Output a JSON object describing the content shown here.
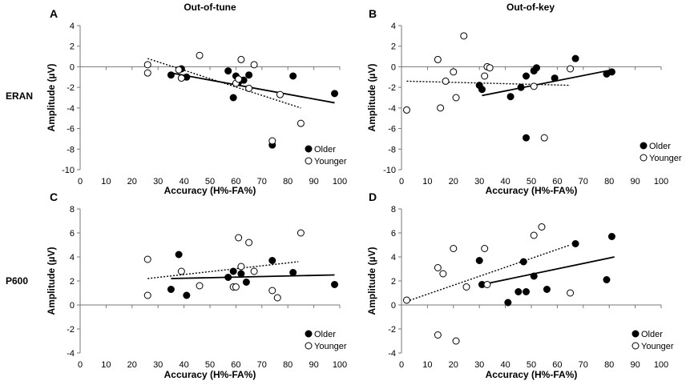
{
  "figure": {
    "row_labels": [
      "ERAN",
      "P600"
    ],
    "column_titles": [
      "Out-of-tune",
      "Out-of-key"
    ]
  },
  "chart_data": [
    {
      "panel": "A",
      "type": "scatter",
      "title": "Out-of-tune",
      "xlabel": "Accuracy (H%-FA%)",
      "ylabel": "Amplitude (µV)",
      "xlim": [
        0,
        100
      ],
      "ylim": [
        -10,
        4
      ],
      "x_ticks": [
        0,
        10,
        20,
        30,
        40,
        50,
        60,
        70,
        80,
        90,
        100
      ],
      "y_ticks": [
        4,
        2,
        0,
        -2,
        -4,
        -6,
        -8,
        -10
      ],
      "legend": [
        "Older",
        "Younger"
      ],
      "series": [
        {
          "name": "Older",
          "marker": "filled-circle",
          "x": [
            35,
            39,
            41,
            57,
            59,
            60,
            61,
            63,
            65,
            74,
            82,
            98
          ],
          "y": [
            -0.8,
            -0.2,
            -1.0,
            -0.4,
            -3.0,
            -0.9,
            -1.5,
            -1.3,
            -0.8,
            -7.6,
            -0.9,
            -2.6
          ],
          "trend": {
            "style": "solid",
            "x": [
              35,
              98
            ],
            "y": [
              -0.6,
              -3.5
            ]
          }
        },
        {
          "name": "Younger",
          "marker": "open-circle",
          "x": [
            26,
            26,
            38,
            39,
            46,
            60,
            61,
            62,
            65,
            67,
            74,
            77,
            85
          ],
          "y": [
            0.2,
            -0.6,
            -0.3,
            -1.1,
            1.1,
            -1.6,
            -1.2,
            0.7,
            -2.1,
            0.2,
            -7.2,
            -2.7,
            -5.5
          ],
          "trend": {
            "style": "dotted",
            "x": [
              26,
              85
            ],
            "y": [
              0.8,
              -4.0
            ]
          }
        }
      ]
    },
    {
      "panel": "B",
      "type": "scatter",
      "title": "Out-of-key",
      "xlabel": "Accuracy (H%-FA%)",
      "ylabel": "Amplitude (µV)",
      "xlim": [
        0,
        100
      ],
      "ylim": [
        -10,
        4
      ],
      "x_ticks": [
        0,
        10,
        20,
        30,
        40,
        50,
        60,
        70,
        80,
        90,
        100
      ],
      "y_ticks": [
        4,
        2,
        0,
        -2,
        -4,
        -6,
        -8,
        -10
      ],
      "legend": [
        "Older",
        "Younger"
      ],
      "series": [
        {
          "name": "Older",
          "marker": "filled-circle",
          "x": [
            30,
            31,
            42,
            46,
            48,
            48,
            51,
            52,
            59,
            67,
            79,
            81
          ],
          "y": [
            -1.8,
            -2.2,
            -2.9,
            -2.0,
            -6.9,
            -0.9,
            -0.4,
            -0.1,
            -1.1,
            0.8,
            -0.7,
            -0.5
          ],
          "trend": {
            "style": "solid",
            "x": [
              31,
              81
            ],
            "y": [
              -2.8,
              -0.3
            ]
          }
        },
        {
          "name": "Younger",
          "marker": "open-circle",
          "x": [
            2,
            14,
            15,
            17,
            20,
            21,
            24,
            32,
            33,
            34,
            51,
            55,
            65
          ],
          "y": [
            -4.2,
            0.7,
            -4.0,
            -1.4,
            -0.5,
            -3.0,
            3.0,
            -0.9,
            0.0,
            -0.1,
            -1.9,
            -6.9,
            -0.2
          ],
          "trend": {
            "style": "dotted",
            "x": [
              2,
              65
            ],
            "y": [
              -1.4,
              -1.8
            ]
          }
        }
      ]
    },
    {
      "panel": "C",
      "type": "scatter",
      "title": "",
      "xlabel": "Accuracy (H%-FA%)",
      "ylabel": "Amplitude (µV)",
      "xlim": [
        0,
        100
      ],
      "ylim": [
        -4,
        8
      ],
      "x_ticks": [
        0,
        10,
        20,
        30,
        40,
        50,
        60,
        70,
        80,
        90,
        100
      ],
      "y_ticks": [
        8,
        6,
        4,
        2,
        0,
        -2,
        -4
      ],
      "legend": [
        "Older",
        "Younger"
      ],
      "series": [
        {
          "name": "Older",
          "marker": "filled-circle",
          "x": [
            35,
            38,
            41,
            57,
            59,
            62,
            64,
            74,
            82,
            98
          ],
          "y": [
            1.3,
            4.2,
            0.8,
            2.3,
            2.8,
            2.6,
            1.9,
            3.7,
            2.7,
            1.7
          ],
          "trend": {
            "style": "solid",
            "x": [
              35,
              98
            ],
            "y": [
              2.2,
              2.5
            ]
          }
        },
        {
          "name": "Younger",
          "marker": "open-circle",
          "x": [
            26,
            26,
            39,
            46,
            59,
            60,
            61,
            62,
            65,
            67,
            74,
            76,
            85
          ],
          "y": [
            0.8,
            3.8,
            2.8,
            1.6,
            1.5,
            1.5,
            5.6,
            3.2,
            5.2,
            2.8,
            1.2,
            0.6,
            6.0
          ],
          "trend": {
            "style": "dotted",
            "x": [
              26,
              84
            ],
            "y": [
              2.2,
              3.6
            ]
          }
        }
      ]
    },
    {
      "panel": "D",
      "type": "scatter",
      "title": "",
      "xlabel": "Accuracy (H%-FA%)",
      "ylabel": "Amplitude (µV)",
      "xlim": [
        0,
        100
      ],
      "ylim": [
        -4,
        8
      ],
      "x_ticks": [
        0,
        10,
        20,
        30,
        40,
        50,
        60,
        70,
        80,
        90,
        100
      ],
      "y_ticks": [
        8,
        6,
        4,
        2,
        0,
        -2,
        -4
      ],
      "legend": [
        "Older",
        "Younger"
      ],
      "series": [
        {
          "name": "Older",
          "marker": "filled-circle",
          "x": [
            30,
            31,
            41,
            45,
            47,
            48,
            51,
            56,
            67,
            79,
            81
          ],
          "y": [
            3.7,
            1.7,
            0.2,
            1.1,
            3.6,
            1.1,
            2.4,
            1.3,
            5.1,
            2.1,
            5.7
          ],
          "trend": {
            "style": "solid",
            "x": [
              31,
              82
            ],
            "y": [
              1.7,
              4.0
            ]
          }
        },
        {
          "name": "Younger",
          "marker": "open-circle",
          "x": [
            2,
            14,
            14,
            16,
            20,
            21,
            25,
            32,
            33,
            51,
            54,
            65
          ],
          "y": [
            0.4,
            3.1,
            -2.5,
            2.6,
            4.7,
            -3.0,
            1.5,
            4.7,
            1.7,
            5.8,
            6.5,
            1.0
          ],
          "trend": {
            "style": "dotted",
            "x": [
              2,
              65
            ],
            "y": [
              0.3,
              5.0
            ]
          }
        }
      ]
    }
  ]
}
